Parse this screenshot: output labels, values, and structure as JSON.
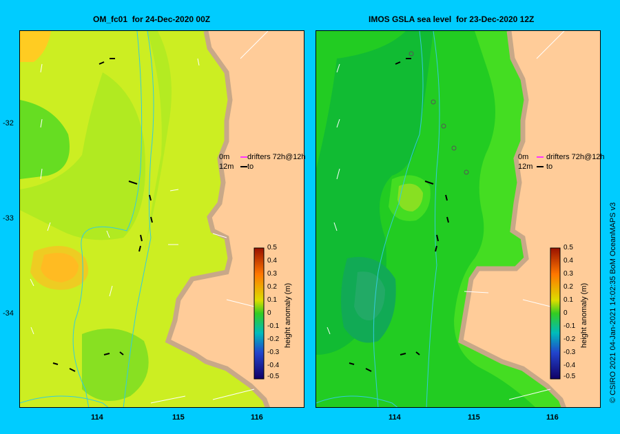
{
  "panels": [
    {
      "title": "OM_fc01  for 24-Dec-2020 00Z",
      "legend": {
        "line1_value": "0m",
        "line1_text": "drifters 72h@12h",
        "line2_value": "12m",
        "line2_text": "to"
      },
      "colorbar": {
        "title": "height anomaly (m)",
        "ticks": [
          "0.5",
          "0.4",
          "0.3",
          "0.2",
          "0.1",
          "0",
          "-0.1",
          "-0.2",
          "-0.3",
          "-0.4",
          "-0.5"
        ]
      }
    },
    {
      "title": "IMOS GSLA sea level  for 23-Dec-2020 12Z",
      "legend": {
        "line1_value": "0m",
        "line1_text": "drifters 72h@12h",
        "line2_value": "12m",
        "line2_text": "to"
      },
      "colorbar": {
        "title": "height anomaly (m)",
        "ticks": [
          "0.5",
          "0.4",
          "0.3",
          "0.2",
          "0.1",
          "0",
          "-0.1",
          "-0.2",
          "-0.3",
          "-0.4",
          "-0.5"
        ]
      }
    }
  ],
  "axes": {
    "y_ticks": [
      "-32",
      "-33",
      "-34"
    ],
    "x_ticks": [
      "114",
      "115",
      "116"
    ]
  },
  "credit": "© CSIRO 2021   04-Jan-2021 14:02:35 BoM OceanMAPS v3"
}
